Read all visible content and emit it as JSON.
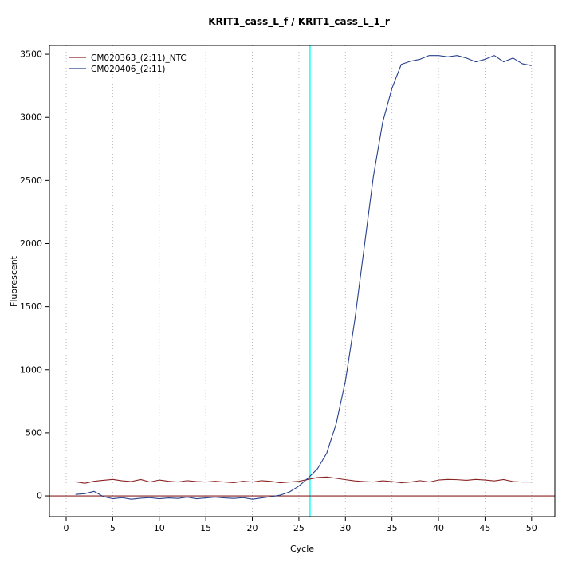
{
  "page": {
    "background": "#ffffff"
  },
  "chart_data": {
    "type": "line",
    "title": "KRIT1_cass_L_f / KRIT1_cass_L_1_r",
    "xlabel": "Cycle",
    "ylabel": "Fluorescent",
    "xlim": [
      -1.8,
      52.5
    ],
    "ylim": [
      -164,
      3570
    ],
    "x_ticks": [
      0,
      5,
      10,
      15,
      20,
      25,
      30,
      35,
      40,
      45,
      50
    ],
    "y_ticks": [
      0,
      500,
      1000,
      1500,
      2000,
      2500,
      3000,
      3500
    ],
    "grid": {
      "vertical": true,
      "horizontal": false,
      "color": "#b8b8b8",
      "style": "dotted"
    },
    "legend": {
      "position": "top-left",
      "box": false
    },
    "threshold_cycle_line": {
      "x": 26.2,
      "color": "#00ffff"
    },
    "baseline": {
      "y": 0,
      "color": "#8b2323"
    },
    "cycles": [
      1,
      2,
      3,
      4,
      5,
      6,
      7,
      8,
      9,
      10,
      11,
      12,
      13,
      14,
      15,
      16,
      17,
      18,
      19,
      20,
      21,
      22,
      23,
      24,
      25,
      26,
      27,
      28,
      29,
      30,
      31,
      32,
      33,
      34,
      35,
      36,
      37,
      38,
      39,
      40,
      41,
      42,
      43,
      44,
      45,
      46,
      47,
      48,
      49,
      50
    ],
    "series": [
      {
        "name": "CM020363_(2:11)_NTC",
        "color": "#8b2323",
        "values": [
          112,
          100,
          116,
          124,
          131,
          120,
          114,
          130,
          110,
          126,
          116,
          110,
          121,
          114,
          110,
          116,
          110,
          105,
          116,
          110,
          121,
          115,
          104,
          110,
          116,
          131,
          146,
          150,
          140,
          129,
          119,
          114,
          110,
          120,
          114,
          104,
          110,
          121,
          110,
          126,
          131,
          129,
          124,
          131,
          126,
          119,
          130,
          114,
          110,
          110
        ]
      },
      {
        "name": "CM020406_(2:11)",
        "color": "#27408b",
        "values": [
          12,
          18,
          36,
          -6,
          -22,
          -14,
          -26,
          -18,
          -14,
          -22,
          -16,
          -20,
          -10,
          -22,
          -16,
          -10,
          -16,
          -20,
          -14,
          -26,
          -16,
          -6,
          6,
          32,
          78,
          142,
          215,
          340,
          570,
          910,
          1390,
          1960,
          2530,
          2960,
          3230,
          3420,
          3445,
          3460,
          3490,
          3490,
          3480,
          3490,
          3470,
          3440,
          3460,
          3490,
          3440,
          3470,
          3425,
          3410
        ]
      }
    ]
  }
}
